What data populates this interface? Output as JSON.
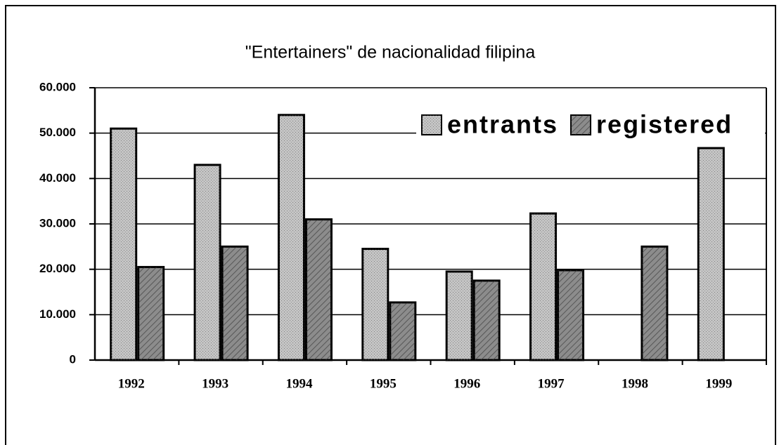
{
  "chart_data": {
    "type": "bar",
    "title": "\"Entertainers\" de nacionalidad filipina",
    "categories": [
      "1992",
      "1993",
      "1994",
      "1995",
      "1996",
      "1997",
      "1998",
      "1999"
    ],
    "series": [
      {
        "name": "entrants",
        "color": "#c4c4c4",
        "values": [
          51000,
          43000,
          54000,
          24500,
          19500,
          32300,
          null,
          46700
        ]
      },
      {
        "name": "registered",
        "color": "#8c8c8c",
        "values": [
          20500,
          25000,
          31000,
          12700,
          17500,
          19800,
          25000,
          null
        ]
      }
    ],
    "ylim": [
      0,
      60000
    ],
    "yticks": [
      0,
      {
        "value": 10000,
        "label": "10.000"
      },
      {
        "value": 20000,
        "label": "20.000"
      },
      {
        "value": 30000,
        "label": "30.000"
      },
      {
        "value": 40000,
        "label": "40.000"
      },
      {
        "value": 50000,
        "label": "50.000"
      },
      {
        "value": 60000,
        "label": "60.000"
      }
    ],
    "grid": true,
    "legend": "top-right"
  }
}
